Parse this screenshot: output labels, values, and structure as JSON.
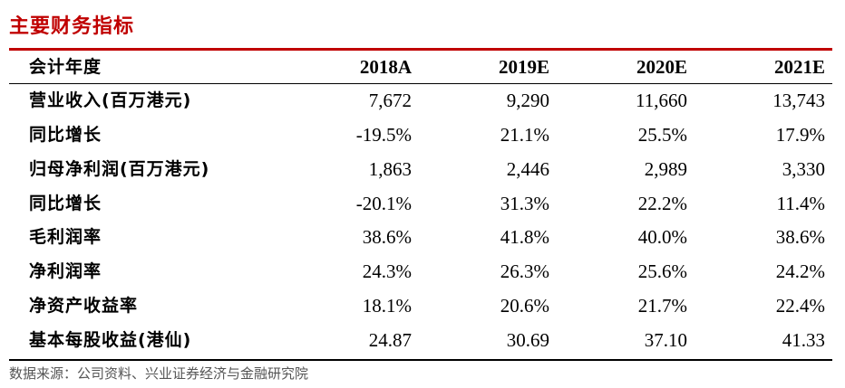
{
  "title": "主要财务指标",
  "table": {
    "header": {
      "label": "会计年度",
      "years": [
        "2018A",
        "2019E",
        "2020E",
        "2021E"
      ]
    },
    "rows": [
      {
        "label": "营业收入(百万港元)",
        "values": [
          "7,672",
          "9,290",
          "11,660",
          "13,743"
        ]
      },
      {
        "label": "同比增长",
        "values": [
          "-19.5%",
          "21.1%",
          "25.5%",
          "17.9%"
        ]
      },
      {
        "label": "归母净利润(百万港元)",
        "values": [
          "1,863",
          "2,446",
          "2,989",
          "3,330"
        ]
      },
      {
        "label": "同比增长",
        "values": [
          "-20.1%",
          "31.3%",
          "22.2%",
          "11.4%"
        ]
      },
      {
        "label": "毛利润率",
        "values": [
          "38.6%",
          "41.8%",
          "40.0%",
          "38.6%"
        ]
      },
      {
        "label": "净利润率",
        "values": [
          "24.3%",
          "26.3%",
          "25.6%",
          "24.2%"
        ]
      },
      {
        "label": "净资产收益率",
        "values": [
          "18.1%",
          "20.6%",
          "21.7%",
          "22.4%"
        ]
      },
      {
        "label": "基本每股收益(港仙)",
        "values": [
          "24.87",
          "30.69",
          "37.10",
          "41.33"
        ]
      }
    ]
  },
  "source": "数据来源：公司资料、兴业证券经济与金融研究院",
  "colors": {
    "title": "#c00000",
    "top_rule": "#c00000",
    "text": "#000000",
    "source": "#555555"
  }
}
